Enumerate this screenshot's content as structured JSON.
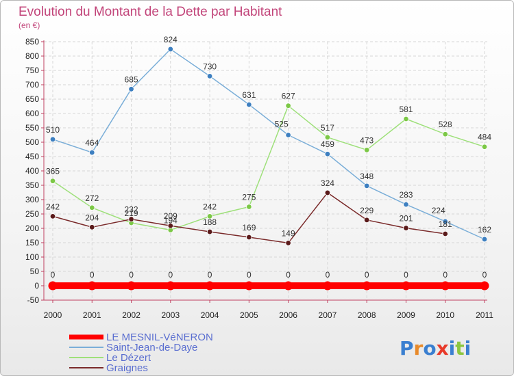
{
  "chart_data": {
    "type": "line",
    "title": "Evolution du Montant de la Dette par Habitant",
    "subtitle": "(en €)",
    "x": [
      "2000",
      "2001",
      "2002",
      "2003",
      "2004",
      "2005",
      "2006",
      "2007",
      "2008",
      "2009",
      "2010",
      "2011"
    ],
    "ylim": [
      -50,
      850
    ],
    "yticks": [
      -50,
      0,
      50,
      100,
      150,
      200,
      250,
      300,
      350,
      400,
      450,
      500,
      550,
      600,
      650,
      700,
      750,
      800,
      850
    ],
    "grid": true,
    "legend_position": "bottom-left",
    "series": [
      {
        "name": "LE MESNIL-VéNERON",
        "color": "#ff0000",
        "values": [
          0,
          0,
          0,
          0,
          0,
          0,
          0,
          0,
          0,
          0,
          0,
          0
        ]
      },
      {
        "name": "Saint-Jean-de-Daye",
        "color": "#7aaed8",
        "marker_color": "#3d7fc0",
        "values": [
          510,
          464,
          685,
          824,
          730,
          631,
          525,
          459,
          348,
          283,
          224,
          162
        ]
      },
      {
        "name": "Le Dézert",
        "color": "#9ee07a",
        "marker_color": "#7cc846",
        "values": [
          365,
          272,
          219,
          194,
          242,
          275,
          627,
          517,
          473,
          581,
          528,
          484
        ]
      },
      {
        "name": "Graignes",
        "color": "#7a2a2a",
        "marker_color": "#5a1a1a",
        "values": [
          242,
          204,
          232,
          209,
          188,
          169,
          149,
          324,
          229,
          201,
          181,
          null
        ]
      }
    ]
  },
  "logo": {
    "text": "Proxiti"
  }
}
